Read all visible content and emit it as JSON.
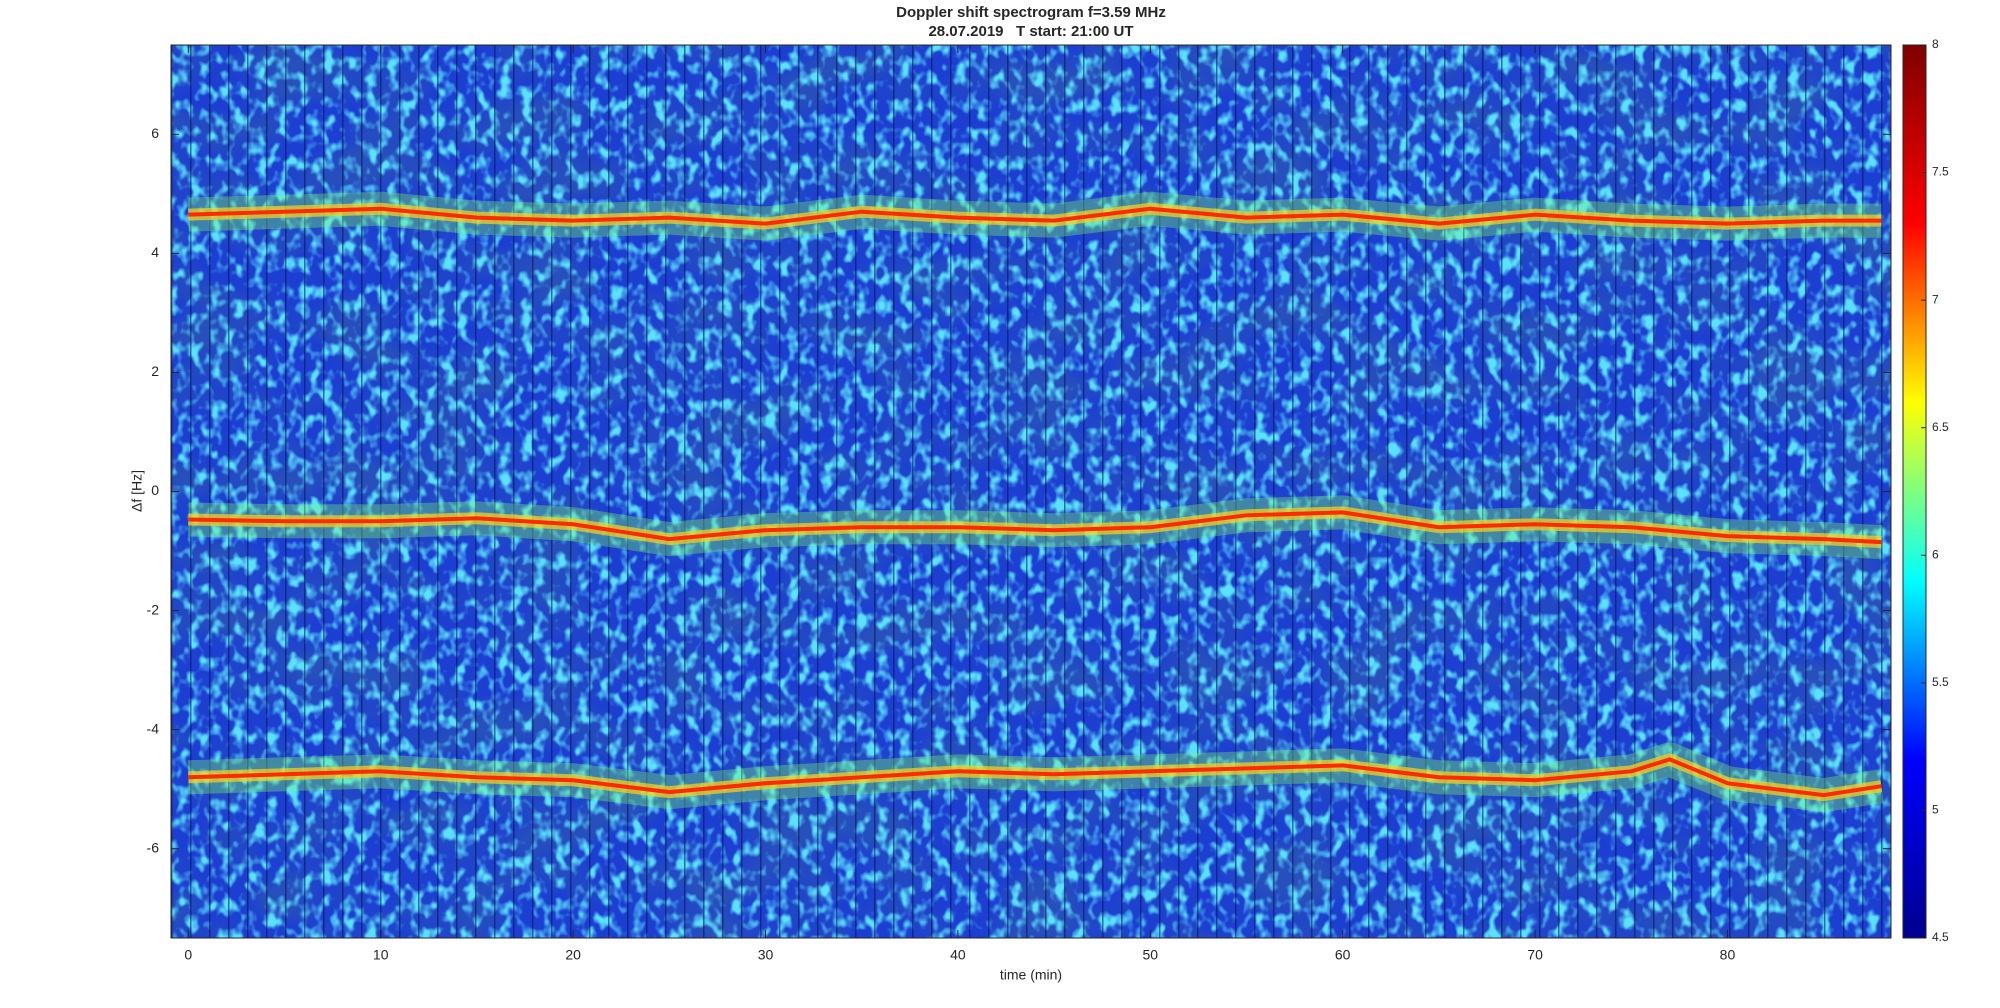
{
  "chart_data": {
    "type": "spectrogram",
    "title": "Doppler shift spectrogram f=3.59 MHz",
    "subtitle": "28.07.2019   T start: 21:00 UT",
    "x_label": "time (min)",
    "y_label": "Δf [Hz]",
    "xlim": [
      -0.9,
      88.5
    ],
    "xticks": [
      0,
      10,
      20,
      30,
      40,
      50,
      60,
      70,
      80
    ],
    "ylim": [
      -7.5,
      7.5
    ],
    "yticks": [
      -6,
      -4,
      -2,
      0,
      2,
      4,
      6
    ],
    "colormap": "jet",
    "clim": [
      4.5,
      8
    ],
    "cticks": [
      4.5,
      5,
      5.5,
      6,
      6.5,
      7,
      7.5,
      8
    ],
    "series": [
      {
        "color": "#ff2a00",
        "x": [
          0,
          5,
          10,
          15,
          20,
          25,
          30,
          35,
          40,
          45,
          50,
          55,
          60,
          65,
          70,
          75,
          80,
          85,
          88
        ],
        "values": [
          4.65,
          4.7,
          4.75,
          4.6,
          4.55,
          4.6,
          4.5,
          4.7,
          4.6,
          4.55,
          4.75,
          4.6,
          4.65,
          4.5,
          4.65,
          4.55,
          4.5,
          4.55,
          4.55
        ]
      },
      {
        "color": "#ff2a00",
        "x": [
          0,
          5,
          10,
          15,
          20,
          25,
          30,
          35,
          40,
          45,
          50,
          55,
          60,
          65,
          70,
          75,
          80,
          85,
          88
        ],
        "values": [
          -0.47,
          -0.5,
          -0.5,
          -0.45,
          -0.55,
          -0.8,
          -0.65,
          -0.6,
          -0.6,
          -0.65,
          -0.6,
          -0.4,
          -0.35,
          -0.6,
          -0.55,
          -0.6,
          -0.75,
          -0.8,
          -0.85
        ]
      },
      {
        "color": "#ff2a00",
        "x": [
          0,
          5,
          10,
          15,
          20,
          25,
          30,
          35,
          40,
          45,
          50,
          55,
          60,
          65,
          70,
          75,
          77,
          80,
          85,
          88
        ],
        "values": [
          -4.8,
          -4.75,
          -4.7,
          -4.8,
          -4.85,
          -5.05,
          -4.9,
          -4.8,
          -4.7,
          -4.75,
          -4.7,
          -4.65,
          -4.6,
          -4.8,
          -4.85,
          -4.7,
          -4.5,
          -4.9,
          -5.1,
          -4.95
        ]
      }
    ]
  }
}
